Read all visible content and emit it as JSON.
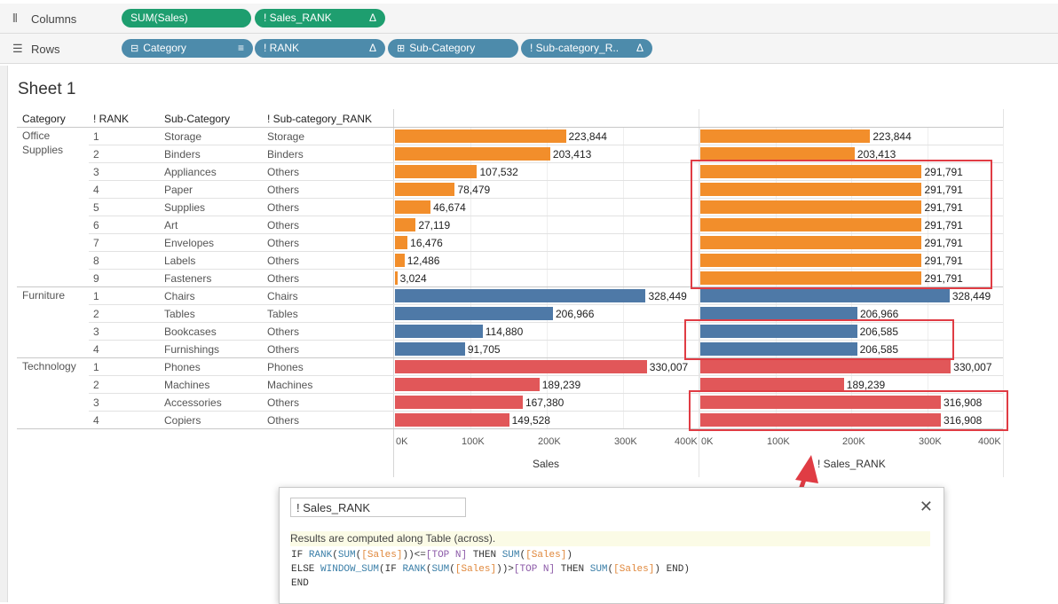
{
  "shelves": {
    "columns": {
      "label": "Columns",
      "pills": [
        {
          "label": "SUM(Sales)",
          "prefix": "",
          "suffix": ""
        },
        {
          "label": "! Sales_RANK",
          "prefix": "",
          "suffix": "Δ"
        }
      ]
    },
    "rows": {
      "label": "Rows",
      "pills": [
        {
          "label": "Category",
          "prefix": "⊟",
          "suffix": "≡"
        },
        {
          "label": "! RANK",
          "prefix": "",
          "suffix": "Δ"
        },
        {
          "label": "Sub-Category",
          "prefix": "⊞",
          "suffix": ""
        },
        {
          "label": "! Sub-category_R..",
          "prefix": "",
          "suffix": "Δ"
        }
      ]
    }
  },
  "sheet": {
    "title": "Sheet 1"
  },
  "headers": {
    "category": "Category",
    "rank": "! RANK",
    "subcategory": "Sub-Category",
    "subcategory_rank": "! Sub-category_RANK"
  },
  "colors": {
    "office": "#f28e2b",
    "furniture": "#4e79a7",
    "technology": "#e15759",
    "highlight": "#e03c44"
  },
  "chart_data": {
    "type": "bar",
    "categories_groups": [
      {
        "name": "Office Supplies",
        "rows": [
          0,
          8
        ]
      },
      {
        "name": "Furniture",
        "rows": [
          9,
          12
        ]
      },
      {
        "name": "Technology",
        "rows": [
          13,
          16
        ]
      }
    ],
    "rows": [
      {
        "category": "Office Supplies",
        "rank": "1",
        "subcategory": "Storage",
        "subcategory_rank": "Storage",
        "sales": 223844,
        "sales_label": "223,844",
        "sales_rank": 223844,
        "sales_rank_label": "223,844"
      },
      {
        "category": "Office Supplies",
        "rank": "2",
        "subcategory": "Binders",
        "subcategory_rank": "Binders",
        "sales": 203413,
        "sales_label": "203,413",
        "sales_rank": 203413,
        "sales_rank_label": "203,413"
      },
      {
        "category": "Office Supplies",
        "rank": "3",
        "subcategory": "Appliances",
        "subcategory_rank": "Others",
        "sales": 107532,
        "sales_label": "107,532",
        "sales_rank": 291791,
        "sales_rank_label": "291,791"
      },
      {
        "category": "Office Supplies",
        "rank": "4",
        "subcategory": "Paper",
        "subcategory_rank": "Others",
        "sales": 78479,
        "sales_label": "78,479",
        "sales_rank": 291791,
        "sales_rank_label": "291,791"
      },
      {
        "category": "Office Supplies",
        "rank": "5",
        "subcategory": "Supplies",
        "subcategory_rank": "Others",
        "sales": 46674,
        "sales_label": "46,674",
        "sales_rank": 291791,
        "sales_rank_label": "291,791"
      },
      {
        "category": "Office Supplies",
        "rank": "6",
        "subcategory": "Art",
        "subcategory_rank": "Others",
        "sales": 27119,
        "sales_label": "27,119",
        "sales_rank": 291791,
        "sales_rank_label": "291,791"
      },
      {
        "category": "Office Supplies",
        "rank": "7",
        "subcategory": "Envelopes",
        "subcategory_rank": "Others",
        "sales": 16476,
        "sales_label": "16,476",
        "sales_rank": 291791,
        "sales_rank_label": "291,791"
      },
      {
        "category": "Office Supplies",
        "rank": "8",
        "subcategory": "Labels",
        "subcategory_rank": "Others",
        "sales": 12486,
        "sales_label": "12,486",
        "sales_rank": 291791,
        "sales_rank_label": "291,791"
      },
      {
        "category": "Office Supplies",
        "rank": "9",
        "subcategory": "Fasteners",
        "subcategory_rank": "Others",
        "sales": 3024,
        "sales_label": "3,024",
        "sales_rank": 291791,
        "sales_rank_label": "291,791"
      },
      {
        "category": "Furniture",
        "rank": "1",
        "subcategory": "Chairs",
        "subcategory_rank": "Chairs",
        "sales": 328449,
        "sales_label": "328,449",
        "sales_rank": 328449,
        "sales_rank_label": "328,449"
      },
      {
        "category": "Furniture",
        "rank": "2",
        "subcategory": "Tables",
        "subcategory_rank": "Tables",
        "sales": 206966,
        "sales_label": "206,966",
        "sales_rank": 206966,
        "sales_rank_label": "206,966"
      },
      {
        "category": "Furniture",
        "rank": "3",
        "subcategory": "Bookcases",
        "subcategory_rank": "Others",
        "sales": 114880,
        "sales_label": "114,880",
        "sales_rank": 206585,
        "sales_rank_label": "206,585"
      },
      {
        "category": "Furniture",
        "rank": "4",
        "subcategory": "Furnishings",
        "subcategory_rank": "Others",
        "sales": 91705,
        "sales_label": "91,705",
        "sales_rank": 206585,
        "sales_rank_label": "206,585"
      },
      {
        "category": "Technology",
        "rank": "1",
        "subcategory": "Phones",
        "subcategory_rank": "Phones",
        "sales": 330007,
        "sales_label": "330,007",
        "sales_rank": 330007,
        "sales_rank_label": "330,007"
      },
      {
        "category": "Technology",
        "rank": "2",
        "subcategory": "Machines",
        "subcategory_rank": "Machines",
        "sales": 189239,
        "sales_label": "189,239",
        "sales_rank": 189239,
        "sales_rank_label": "189,239"
      },
      {
        "category": "Technology",
        "rank": "3",
        "subcategory": "Accessories",
        "subcategory_rank": "Others",
        "sales": 167380,
        "sales_label": "167,380",
        "sales_rank": 316908,
        "sales_rank_label": "316,908"
      },
      {
        "category": "Technology",
        "rank": "4",
        "subcategory": "Copiers",
        "subcategory_rank": "Others",
        "sales": 149528,
        "sales_label": "149,528",
        "sales_rank": 316908,
        "sales_rank_label": "316,908"
      }
    ],
    "axes": [
      {
        "title": "Sales",
        "range": [
          0,
          400000
        ],
        "ticks": [
          "0K",
          "100K",
          "200K",
          "300K",
          "400K"
        ]
      },
      {
        "title": "! Sales_RANK",
        "range": [
          0,
          400000
        ],
        "ticks": [
          "0K",
          "100K",
          "200K",
          "300K",
          "400K"
        ]
      }
    ],
    "highlight_groups": [
      [
        2,
        8
      ],
      [
        11,
        12
      ],
      [
        15,
        16
      ]
    ]
  },
  "dialog": {
    "field_name": "! Sales_RANK",
    "close_label": "✕",
    "info": "Results are computed along Table (across).",
    "code_lines": [
      [
        {
          "t": "IF ",
          "c": "kw"
        },
        {
          "t": "RANK",
          "c": "fn"
        },
        {
          "t": "(",
          "c": "kw"
        },
        {
          "t": "SUM",
          "c": "fn"
        },
        {
          "t": "(",
          "c": "kw"
        },
        {
          "t": "[Sales]",
          "c": "fld"
        },
        {
          "t": "))<=",
          "c": "kw"
        },
        {
          "t": "[TOP N]",
          "c": "par"
        },
        {
          "t": " THEN ",
          "c": "kw"
        },
        {
          "t": "SUM",
          "c": "fn"
        },
        {
          "t": "(",
          "c": "kw"
        },
        {
          "t": "[Sales]",
          "c": "fld"
        },
        {
          "t": ")",
          "c": "kw"
        }
      ],
      [
        {
          "t": "ELSE ",
          "c": "kw"
        },
        {
          "t": "WINDOW_SUM",
          "c": "fn"
        },
        {
          "t": "(IF ",
          "c": "kw"
        },
        {
          "t": "RANK",
          "c": "fn"
        },
        {
          "t": "(",
          "c": "kw"
        },
        {
          "t": "SUM",
          "c": "fn"
        },
        {
          "t": "(",
          "c": "kw"
        },
        {
          "t": "[Sales]",
          "c": "fld"
        },
        {
          "t": "))>",
          "c": "kw"
        },
        {
          "t": "[TOP N]",
          "c": "par"
        },
        {
          "t": " THEN ",
          "c": "kw"
        },
        {
          "t": "SUM",
          "c": "fn"
        },
        {
          "t": "(",
          "c": "kw"
        },
        {
          "t": "[Sales]",
          "c": "fld"
        },
        {
          "t": ") END)",
          "c": "kw"
        }
      ],
      [
        {
          "t": "END",
          "c": "kw"
        }
      ]
    ]
  }
}
